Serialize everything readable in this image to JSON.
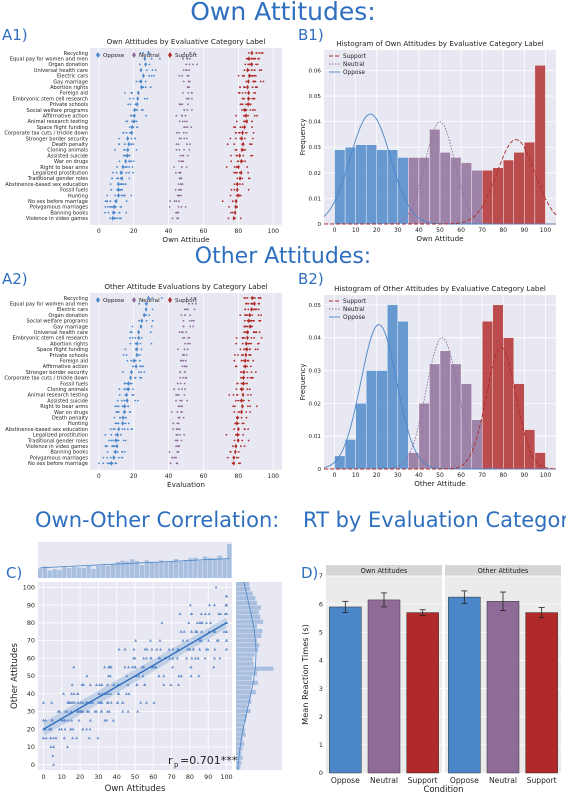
{
  "headings": {
    "own": "Own Attitudes:",
    "other": "Other Attitudes:",
    "corr": "Own-Other Correlation:",
    "rt": "RT by Evaluation Category:"
  },
  "panel_labels": {
    "a1": "A1)",
    "b1": "B1)",
    "a2": "A2)",
    "b2": "B2)",
    "c": "C)",
    "d": "D)"
  },
  "colors": {
    "oppose": "#4a86c8",
    "neutral": "#8e6c97",
    "support": "#b02a2a",
    "heading": "#2f6fbf",
    "plot_bg": "#e8e8f2"
  },
  "chart_data": [
    {
      "id": "A1",
      "type": "scatter",
      "title": "Own Attitudes by Evaluative Category Label",
      "xlabel": "Own Attitude",
      "ylabel": "",
      "xlim": [
        -5,
        105
      ],
      "xticks": [
        0,
        20,
        40,
        60,
        80,
        100
      ],
      "legend": [
        "Oppose",
        "Neutral",
        "Support"
      ],
      "legend_position": "top-left",
      "categories": [
        "Recycling",
        "Equal pay for women and men",
        "Organ donation",
        "Universal health care",
        "Electric cars",
        "Gay marriage",
        "Abortion rights",
        "Foreign aid",
        "Embryonic stem cell research",
        "Private schools",
        "Social welfare programs",
        "Affirmative action",
        "Animal research testing",
        "Space flight funding",
        "Corporate tax cuts / trickle down",
        "Stronger border security",
        "Death penalty",
        "Cloning animals",
        "Assisted suicide",
        "War on drugs",
        "Right to bear arms",
        "Legalized prostitution",
        "Traditional gender roles",
        "Abstinence-based sex education",
        "Fossil fuels",
        "Hunting",
        "No sex before marriage",
        "Polygamous marriages",
        "Banning books",
        "Violence in video games"
      ]
    },
    {
      "id": "B1",
      "type": "bar",
      "title": "Histogram of Own Attitudes by Evaluative Category Label",
      "xlabel": "Own Attitude",
      "ylabel": "Frequency",
      "xlim": [
        -5,
        105
      ],
      "ylim": [
        0,
        0.068
      ],
      "xticks": [
        0,
        10,
        20,
        30,
        40,
        50,
        60,
        70,
        80,
        90,
        100
      ],
      "yticks": [
        0,
        0.01,
        0.02,
        0.03,
        0.04,
        0.05,
        0.06
      ],
      "legend": [
        "Support",
        "Neutral",
        "Oppose"
      ],
      "legend_position": "top-left",
      "bins": [
        {
          "x0": 0,
          "x1": 5,
          "y": 0.029,
          "cat": "oppose"
        },
        {
          "x0": 5,
          "x1": 10,
          "y": 0.03,
          "cat": "oppose"
        },
        {
          "x0": 10,
          "x1": 15,
          "y": 0.031,
          "cat": "oppose"
        },
        {
          "x0": 15,
          "x1": 20,
          "y": 0.031,
          "cat": "oppose"
        },
        {
          "x0": 20,
          "x1": 25,
          "y": 0.029,
          "cat": "oppose"
        },
        {
          "x0": 25,
          "x1": 30,
          "y": 0.029,
          "cat": "oppose"
        },
        {
          "x0": 30,
          "x1": 35,
          "y": 0.026,
          "cat": "oppose"
        },
        {
          "x0": 35,
          "x1": 40,
          "y": 0.026,
          "cat": "neutral"
        },
        {
          "x0": 40,
          "x1": 45,
          "y": 0.026,
          "cat": "neutral"
        },
        {
          "x0": 45,
          "x1": 50,
          "y": 0.037,
          "cat": "neutral"
        },
        {
          "x0": 50,
          "x1": 55,
          "y": 0.028,
          "cat": "neutral"
        },
        {
          "x0": 55,
          "x1": 60,
          "y": 0.026,
          "cat": "neutral"
        },
        {
          "x0": 60,
          "x1": 65,
          "y": 0.024,
          "cat": "neutral"
        },
        {
          "x0": 65,
          "x1": 70,
          "y": 0.021,
          "cat": "neutral"
        },
        {
          "x0": 70,
          "x1": 75,
          "y": 0.021,
          "cat": "support"
        },
        {
          "x0": 75,
          "x1": 80,
          "y": 0.022,
          "cat": "support"
        },
        {
          "x0": 80,
          "x1": 85,
          "y": 0.025,
          "cat": "support"
        },
        {
          "x0": 85,
          "x1": 90,
          "y": 0.028,
          "cat": "support"
        },
        {
          "x0": 90,
          "x1": 95,
          "y": 0.032,
          "cat": "support"
        },
        {
          "x0": 95,
          "x1": 100,
          "y": 0.062,
          "cat": "support"
        }
      ],
      "curves": [
        {
          "cat": "oppose",
          "mean": 17,
          "sd": 9.5,
          "peak": 0.043
        },
        {
          "cat": "neutral",
          "mean": 50,
          "sd": 7,
          "peak": 0.04
        },
        {
          "cat": "support",
          "mean": 86,
          "sd": 9,
          "peak": 0.033
        }
      ]
    },
    {
      "id": "A2",
      "type": "scatter",
      "title": "Other Attitude Evaluations by Category Label",
      "xlabel": "Evaluation",
      "ylabel": "",
      "xlim": [
        -5,
        105
      ],
      "xticks": [
        0,
        20,
        40,
        60,
        80,
        100
      ],
      "legend": [
        "Oppose",
        "Neutral",
        "Support"
      ],
      "legend_position": "top-left",
      "categories": [
        "Recycling",
        "Equal pay for women and men",
        "Electric cars",
        "Organ donation",
        "Social welfare programs",
        "Gay marriage",
        "Universal health care",
        "Embryonic stem cell research",
        "Abortion rights",
        "Space flight funding",
        "Private schools",
        "Foreign aid",
        "Affirmative action",
        "Stronger border security",
        "Corporate tax cuts / trickle down",
        "Fossil fuels",
        "Cloning animals",
        "Animal research testing",
        "Assisted suicide",
        "Right to bear arms",
        "War on drugs",
        "Death penalty",
        "Hunting",
        "Abstinence-based sex education",
        "Legalized prostitution",
        "Traditional gender roles",
        "Violence in video games",
        "Banning books",
        "Polygamous marriages",
        "No sex before marriage"
      ]
    },
    {
      "id": "B2",
      "type": "bar",
      "title": "Histogram of Other Attitudes by Evaluative Category Label",
      "xlabel": "Other Attitude",
      "ylabel": "Frequency",
      "xlim": [
        -5,
        105
      ],
      "ylim": [
        0,
        0.053
      ],
      "xticks": [
        0,
        10,
        20,
        30,
        40,
        50,
        60,
        70,
        80,
        90,
        100
      ],
      "yticks": [
        0,
        0.01,
        0.02,
        0.03,
        0.04,
        0.05
      ],
      "legend": [
        "Support",
        "Neutral",
        "Oppose"
      ],
      "legend_position": "top-left",
      "bins": [
        {
          "x0": 0,
          "x1": 5,
          "y": 0.004,
          "cat": "oppose"
        },
        {
          "x0": 5,
          "x1": 10,
          "y": 0.009,
          "cat": "oppose"
        },
        {
          "x0": 10,
          "x1": 15,
          "y": 0.02,
          "cat": "oppose"
        },
        {
          "x0": 15,
          "x1": 20,
          "y": 0.03,
          "cat": "oppose"
        },
        {
          "x0": 20,
          "x1": 25,
          "y": 0.03,
          "cat": "oppose"
        },
        {
          "x0": 25,
          "x1": 30,
          "y": 0.05,
          "cat": "oppose"
        },
        {
          "x0": 30,
          "x1": 35,
          "y": 0.045,
          "cat": "oppose"
        },
        {
          "x0": 35,
          "x1": 40,
          "y": 0.005,
          "cat": "neutral"
        },
        {
          "x0": 40,
          "x1": 45,
          "y": 0.02,
          "cat": "neutral"
        },
        {
          "x0": 45,
          "x1": 50,
          "y": 0.032,
          "cat": "neutral"
        },
        {
          "x0": 50,
          "x1": 55,
          "y": 0.036,
          "cat": "neutral"
        },
        {
          "x0": 55,
          "x1": 60,
          "y": 0.032,
          "cat": "neutral"
        },
        {
          "x0": 60,
          "x1": 65,
          "y": 0.026,
          "cat": "neutral"
        },
        {
          "x0": 65,
          "x1": 70,
          "y": 0.015,
          "cat": "neutral"
        },
        {
          "x0": 70,
          "x1": 75,
          "y": 0.045,
          "cat": "support"
        },
        {
          "x0": 75,
          "x1": 80,
          "y": 0.05,
          "cat": "support"
        },
        {
          "x0": 80,
          "x1": 85,
          "y": 0.04,
          "cat": "support"
        },
        {
          "x0": 85,
          "x1": 90,
          "y": 0.026,
          "cat": "support"
        },
        {
          "x0": 90,
          "x1": 95,
          "y": 0.012,
          "cat": "support"
        },
        {
          "x0": 95,
          "x1": 100,
          "y": 0.005,
          "cat": "support"
        }
      ],
      "curves": [
        {
          "cat": "oppose",
          "mean": 21,
          "sd": 8.5,
          "peak": 0.044
        },
        {
          "cat": "neutral",
          "mean": 51,
          "sd": 7.5,
          "peak": 0.04
        },
        {
          "cat": "support",
          "mean": 79,
          "sd": 7,
          "peak": 0.037
        }
      ]
    },
    {
      "id": "C",
      "type": "scatter",
      "title": "",
      "xlabel": "Own Attitudes",
      "ylabel": "Other Attitudes",
      "xlim": [
        -3,
        103
      ],
      "ylim": [
        -3,
        103
      ],
      "xticks": [
        0,
        10,
        20,
        30,
        40,
        50,
        60,
        70,
        80,
        90,
        100
      ],
      "yticks": [
        0,
        10,
        20,
        30,
        40,
        50,
        60,
        70,
        80,
        90,
        100
      ],
      "regression": {
        "x0": 0,
        "y0": 20,
        "x1": 100,
        "y1": 80
      },
      "annotation": "r",
      "annotation_sub": "p",
      "annotation_value": "=0.701***",
      "top_hist": [
        0.28,
        0.34,
        0.22,
        0.26,
        0.24,
        0.33,
        0.29,
        0.33,
        0.31,
        0.3,
        0.36,
        0.27,
        0.36,
        0.37,
        0.36,
        0.4,
        0.47,
        0.51,
        0.49,
        0.55,
        0.5,
        0.38,
        0.52,
        0.46,
        0.47,
        0.52,
        0.47,
        0.5,
        0.56,
        0.49,
        0.53,
        0.58,
        0.6,
        0.51,
        0.63,
        0.59,
        0.58,
        0.66,
        0.55,
        1.0
      ],
      "right_hist": [
        0.1,
        0.12,
        0.15,
        0.12,
        0.15,
        0.18,
        0.15,
        0.22,
        0.2,
        0.17,
        0.23,
        0.25,
        0.33,
        0.26,
        0.35,
        0.33,
        0.45,
        0.34,
        0.5,
        0.36,
        0.48,
        0.85,
        0.4,
        0.38,
        0.42,
        0.5,
        0.53,
        0.48,
        0.58,
        0.6,
        0.48,
        0.62,
        0.55,
        0.52,
        0.57,
        0.48,
        0.44,
        0.38,
        0.32,
        0.3
      ]
    },
    {
      "id": "D",
      "type": "bar",
      "title": "",
      "xlabel": "Condition",
      "ylabel": "Mean Reaction Times (s)",
      "ylim": [
        0,
        7
      ],
      "yticks": [
        0,
        1,
        2,
        3,
        4,
        5,
        6,
        7
      ],
      "facets": [
        "Own Attitudes",
        "Other Attitudes"
      ],
      "categories": [
        "Oppose",
        "Neutral",
        "Support"
      ],
      "series": [
        {
          "name": "Own Attitudes",
          "values": [
            5.9,
            6.15,
            5.7
          ],
          "errors": [
            0.2,
            0.25,
            0.1
          ]
        },
        {
          "name": "Other Attitudes",
          "values": [
            6.25,
            6.1,
            5.7
          ],
          "errors": [
            0.22,
            0.33,
            0.18
          ]
        }
      ]
    }
  ]
}
